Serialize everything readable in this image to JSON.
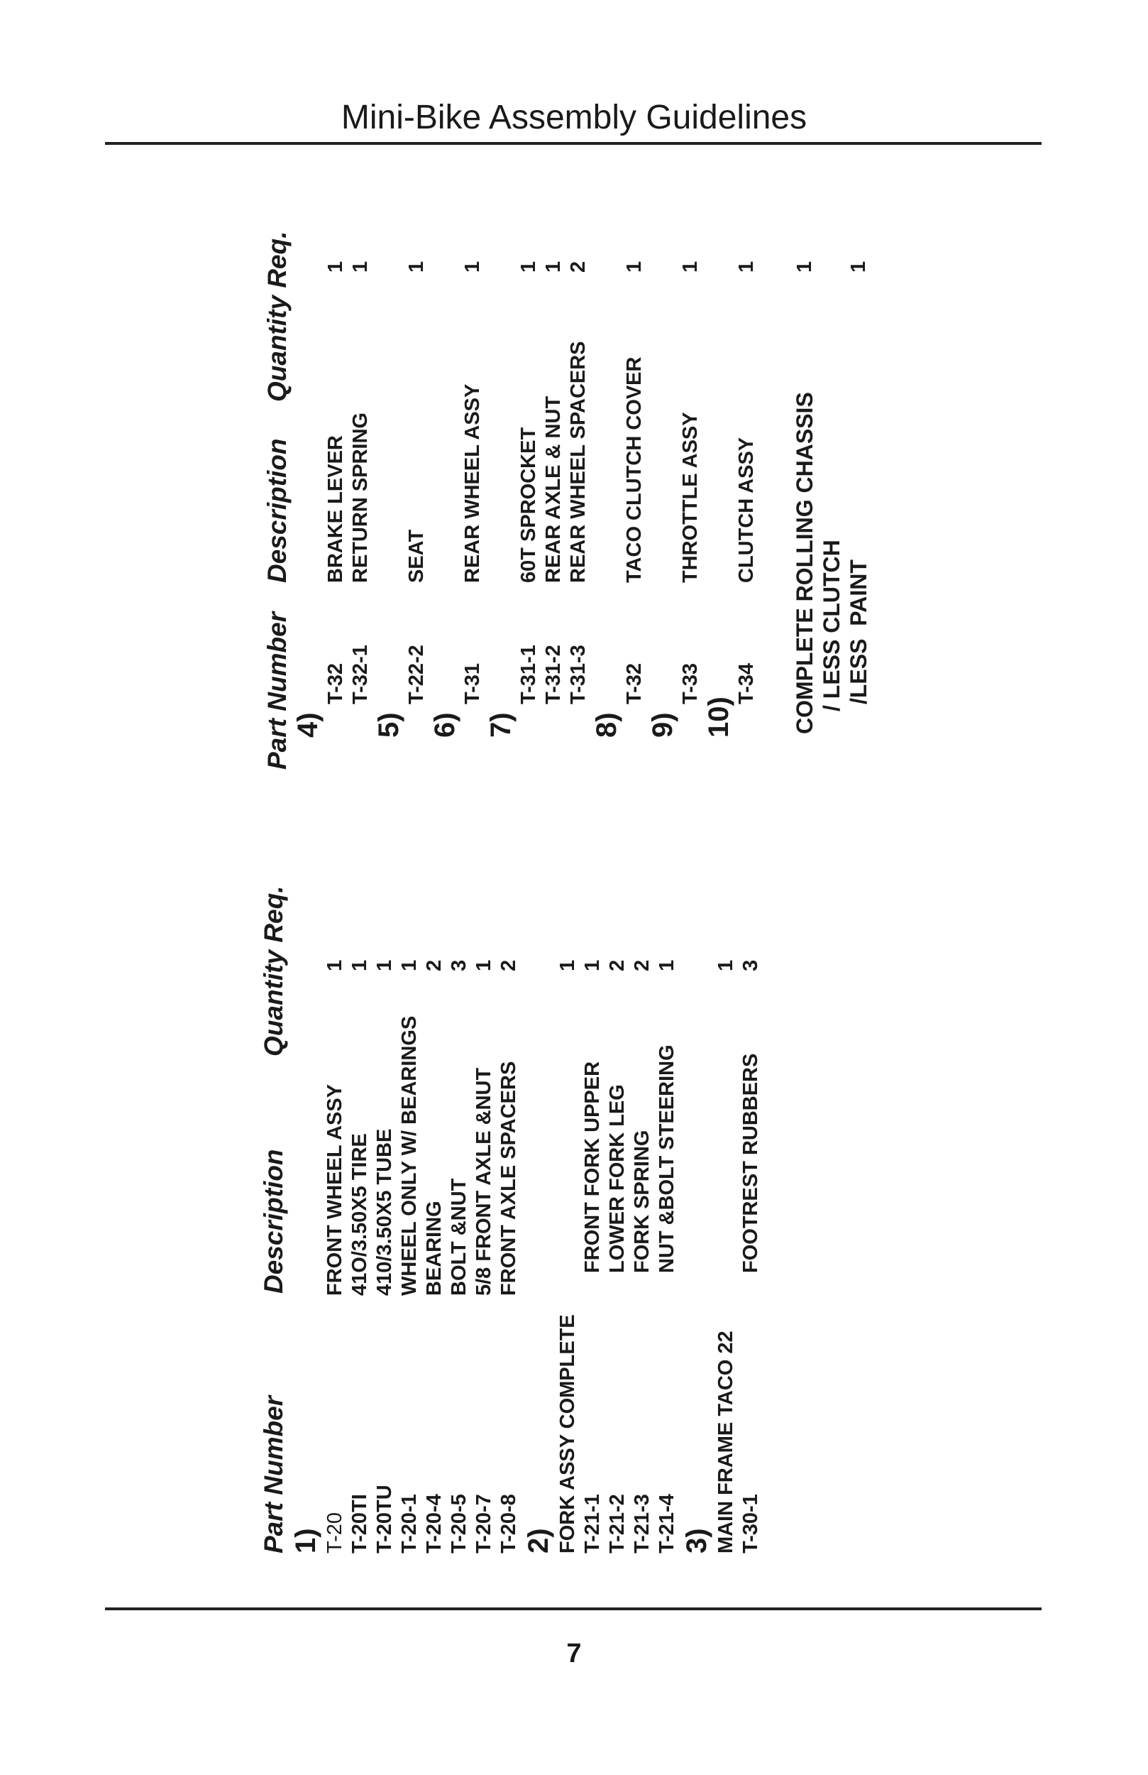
{
  "header": {
    "title": "Mini-Bike Assembly Guidelines"
  },
  "footer": {
    "page_number": "7"
  },
  "left_table": {
    "columns": [
      "Part Number",
      "Description",
      "Quantity Req."
    ],
    "rows": [
      {
        "section": "1)"
      },
      {
        "part": "T-20",
        "desc": "FRONT WHEEL ASSY",
        "qty": "1"
      },
      {
        "part": "T-20TI",
        "desc": "41O/3.50X5 TIRE",
        "qty": "1"
      },
      {
        "part": "T-20TU",
        "desc": "410/3.50X5 TUBE",
        "qty": "1"
      },
      {
        "part": "T-20-1",
        "desc": "WHEEL ONLY W/ BEARINGS",
        "qty": "1"
      },
      {
        "part": "T-20-4",
        "desc": "BEARING",
        "qty": "2"
      },
      {
        "part": "T-20-5",
        "desc": "BOLT &NUT",
        "qty": "3"
      },
      {
        "part": "T-20-7",
        "desc": "5/8 FRONT AXLE &NUT",
        "qty": "1"
      },
      {
        "part": "T-20-8",
        "desc": "FRONT AXLE SPACERS",
        "qty": "2"
      },
      {
        "section": "2)"
      },
      {
        "heading": "FORK ASSY COMPLETE",
        "qty": "1"
      },
      {
        "part": "T-21-1",
        "desc": "FRONT FORK UPPER",
        "qty": "1"
      },
      {
        "part": "T-21-2",
        "desc": "LOWER FORK LEG",
        "qty": "2"
      },
      {
        "part": "T-21-3",
        "desc": "FORK SPRING",
        "qty": "2"
      },
      {
        "part": "T-21-4",
        "desc": "NUT &BOLT STEERING",
        "qty": "1"
      },
      {
        "section": "3)"
      },
      {
        "heading": "MAIN FRAME TACO 22",
        "qty": "1"
      },
      {
        "part": "T-30-1",
        "desc": "FOOTREST RUBBERS",
        "qty": "3"
      }
    ]
  },
  "right_table": {
    "columns": [
      "Part Number",
      "Description",
      "Quantity Req."
    ],
    "rows": [
      {
        "section": "4)"
      },
      {
        "part": "T-32",
        "desc": "BRAKE LEVER",
        "qty": "1"
      },
      {
        "part": "T-32-1",
        "desc": "RETURN SPRING",
        "qty": "1"
      },
      {
        "section": "5)"
      },
      {
        "part": "T-22-2",
        "desc": "SEAT",
        "qty": "1"
      },
      {
        "section": "6)"
      },
      {
        "part": "T-31",
        "desc": "REAR WHEEL ASSY",
        "qty": "1"
      },
      {
        "section": "7)"
      },
      {
        "part": "T-31-1",
        "desc": "60T SPROCKET",
        "qty": "1"
      },
      {
        "part": "T-31-2",
        "desc": "REAR AXLE & NUT",
        "qty": "1"
      },
      {
        "part": "T-31-3",
        "desc": "REAR WHEEL SPACERS",
        "qty": "2"
      },
      {
        "section": "8)"
      },
      {
        "part": "T-32",
        "desc": "TACO CLUTCH COVER",
        "qty": "1"
      },
      {
        "section": "9)"
      },
      {
        "part": "T-33",
        "desc": "THROTTLE ASSY",
        "qty": "1"
      },
      {
        "section": "10)"
      },
      {
        "part": "T-34",
        "desc": "CLUTCH ASSY",
        "qty": "1"
      }
    ],
    "complete": [
      {
        "text": "COMPLETE ROLLING CHASSIS",
        "qty": "1"
      },
      {
        "text": "/ LESS CLUTCH",
        "qty": ""
      },
      {
        "text": "/LESS  PAINT",
        "qty": "1"
      }
    ]
  }
}
